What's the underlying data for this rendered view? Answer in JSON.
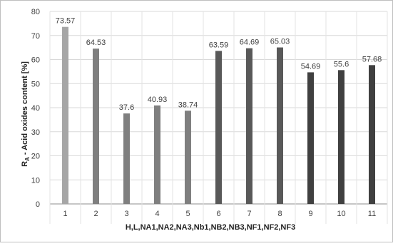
{
  "chart_data": {
    "type": "bar",
    "categories": [
      "1",
      "2",
      "3",
      "4",
      "5",
      "6",
      "7",
      "8",
      "9",
      "10",
      "11"
    ],
    "values": [
      73.57,
      64.53,
      37.6,
      40.93,
      38.74,
      63.59,
      64.69,
      65.03,
      54.69,
      55.6,
      57.68
    ],
    "data_labels": [
      "73.57",
      "64.53",
      "37.6",
      "40.93",
      "38.74",
      "63.59",
      "64.69",
      "65.03",
      "54.69",
      "55.6",
      "57.68"
    ],
    "bar_colors": [
      "#a6a6a6",
      "#7f7f7f",
      "#7f7f7f",
      "#7f7f7f",
      "#7f7f7f",
      "#595959",
      "#595959",
      "#595959",
      "#404040",
      "#404040",
      "#404040"
    ],
    "title": "",
    "xlabel": "H,L,NA1,NA2,NA3,Nb1,NB2,NB3,NF1,NF2,NF3",
    "ylabel_main": "R",
    "ylabel_sub": "A",
    "ylabel_rest": " - Acid oxides content [%]",
    "ylim": [
      0,
      80
    ],
    "yticks": [
      0,
      10,
      20,
      30,
      40,
      50,
      60,
      70,
      80
    ],
    "grid": true
  }
}
